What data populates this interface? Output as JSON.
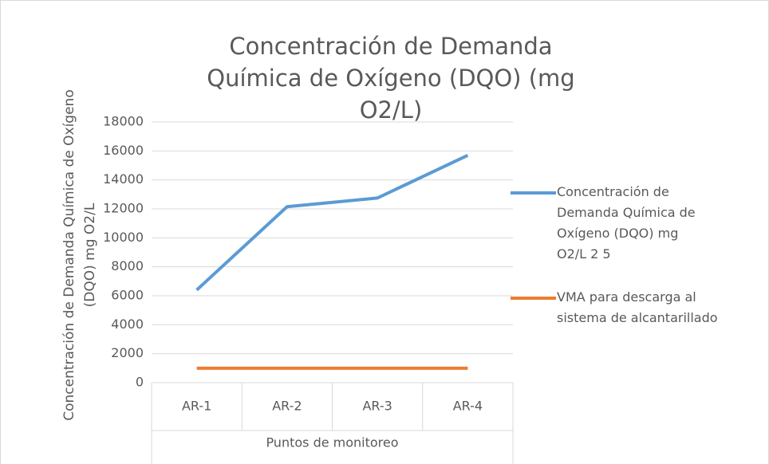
{
  "chart_data": {
    "type": "line",
    "title": "Concentración de Demanda Química de Oxígeno (DQO) (mg O2/L)",
    "ylabel": "Concentración de Demanda Química de Oxígeno (DQO) mg O2/L",
    "xlabel": "Puntos de monitoreo",
    "categories": [
      "AR-1",
      "AR-2",
      "AR-3",
      "AR-4"
    ],
    "series": [
      {
        "name": "Concentración de Demanda Química de Oxígeno (DQO) mg O2/L 2 5",
        "color": "#5b9bd5",
        "values": [
          6400,
          12150,
          12750,
          15700
        ]
      },
      {
        "name": "VMA para descarga al sistema de alcantarillado",
        "color": "#ed7d31",
        "values": [
          1000,
          1000,
          1000,
          1000
        ]
      }
    ],
    "ylim": [
      0,
      18000
    ],
    "yticks": [
      0,
      2000,
      4000,
      6000,
      8000,
      10000,
      12000,
      14000,
      16000,
      18000
    ],
    "grid": true
  }
}
